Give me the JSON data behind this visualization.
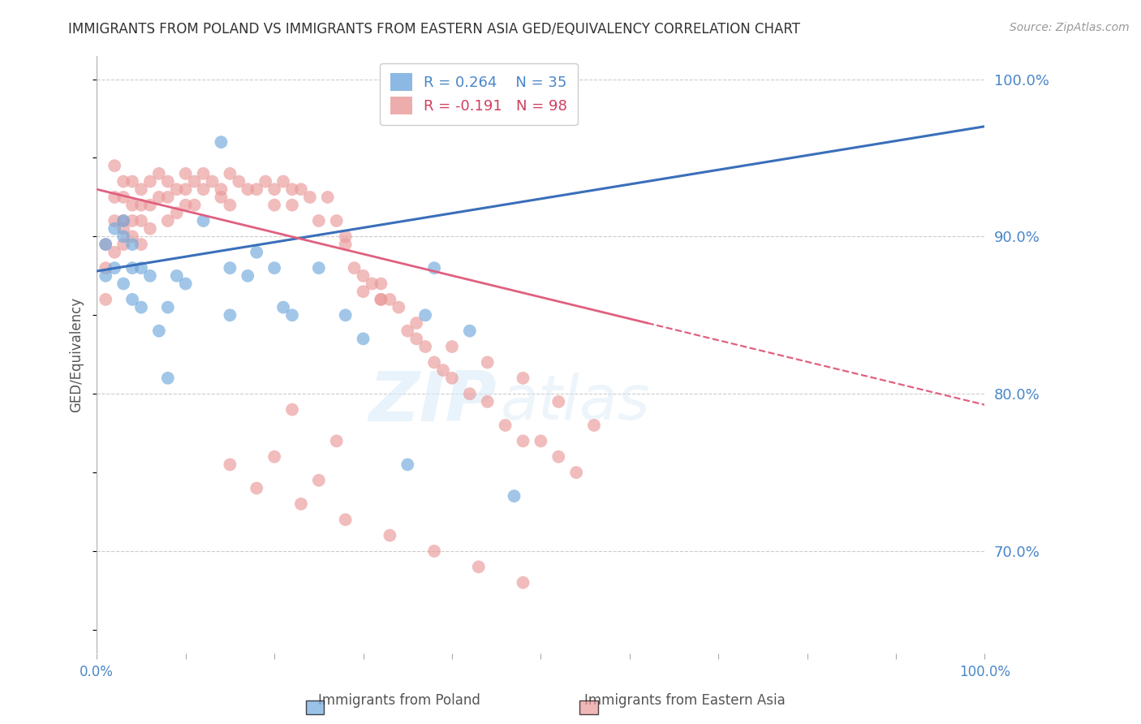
{
  "title": "IMMIGRANTS FROM POLAND VS IMMIGRANTS FROM EASTERN ASIA GED/EQUIVALENCY CORRELATION CHART",
  "source": "Source: ZipAtlas.com",
  "ylabel": "GED/Equivalency",
  "xlim": [
    0.0,
    1.0
  ],
  "ylim": [
    0.635,
    1.015
  ],
  "xticks": [
    0.0,
    0.1,
    0.2,
    0.3,
    0.4,
    0.5,
    0.6,
    0.7,
    0.8,
    0.9,
    1.0
  ],
  "xticklabels": [
    "0.0%",
    "",
    "",
    "",
    "",
    "",
    "",
    "",
    "",
    "",
    "100.0%"
  ],
  "ytick_positions": [
    0.7,
    0.8,
    0.9,
    1.0
  ],
  "ytick_labels": [
    "70.0%",
    "80.0%",
    "90.0%",
    "100.0%"
  ],
  "poland_color": "#6fa8dc",
  "eastern_asia_color": "#ea9999",
  "poland_line_color": "#3a6fba",
  "eastern_asia_line_color": "#e06080",
  "poland_R": 0.264,
  "poland_N": 35,
  "eastern_asia_R": -0.191,
  "eastern_asia_N": 98,
  "background_color": "#ffffff",
  "grid_color": "#cccccc",
  "axis_color": "#aaaaaa",
  "title_color": "#333333",
  "label_color": "#4a86c8",
  "watermark_color": "#d8eaf8",
  "poland_line_x0": 0.0,
  "poland_line_y0": 0.878,
  "poland_line_x1": 1.0,
  "poland_line_y1": 0.97,
  "eastern_line_x0": 0.0,
  "eastern_line_y0": 0.93,
  "eastern_line_solid_x1": 0.62,
  "eastern_line_solid_y1": 0.845,
  "eastern_line_dash_x1": 1.0,
  "eastern_line_dash_y1": 0.793,
  "poland_scatter_x": [
    0.01,
    0.01,
    0.02,
    0.02,
    0.03,
    0.03,
    0.03,
    0.04,
    0.04,
    0.04,
    0.05,
    0.05,
    0.06,
    0.07,
    0.08,
    0.08,
    0.09,
    0.1,
    0.12,
    0.14,
    0.15,
    0.15,
    0.17,
    0.18,
    0.2,
    0.21,
    0.22,
    0.25,
    0.28,
    0.3,
    0.35,
    0.37,
    0.38,
    0.42,
    0.47
  ],
  "poland_scatter_y": [
    0.895,
    0.875,
    0.905,
    0.88,
    0.91,
    0.9,
    0.87,
    0.895,
    0.88,
    0.86,
    0.88,
    0.855,
    0.875,
    0.84,
    0.855,
    0.81,
    0.875,
    0.87,
    0.91,
    0.96,
    0.88,
    0.85,
    0.875,
    0.89,
    0.88,
    0.855,
    0.85,
    0.88,
    0.85,
    0.835,
    0.755,
    0.85,
    0.88,
    0.84,
    0.735
  ],
  "eastern_asia_scatter_x": [
    0.01,
    0.01,
    0.01,
    0.02,
    0.02,
    0.02,
    0.02,
    0.03,
    0.03,
    0.03,
    0.03,
    0.03,
    0.04,
    0.04,
    0.04,
    0.04,
    0.05,
    0.05,
    0.05,
    0.05,
    0.06,
    0.06,
    0.06,
    0.07,
    0.07,
    0.08,
    0.08,
    0.08,
    0.09,
    0.09,
    0.1,
    0.1,
    0.1,
    0.11,
    0.11,
    0.12,
    0.12,
    0.13,
    0.14,
    0.14,
    0.15,
    0.15,
    0.16,
    0.17,
    0.18,
    0.19,
    0.2,
    0.2,
    0.21,
    0.22,
    0.22,
    0.23,
    0.24,
    0.25,
    0.26,
    0.27,
    0.28,
    0.28,
    0.29,
    0.3,
    0.31,
    0.32,
    0.32,
    0.33,
    0.34,
    0.35,
    0.36,
    0.37,
    0.38,
    0.39,
    0.4,
    0.42,
    0.44,
    0.46,
    0.48,
    0.5,
    0.52,
    0.54,
    0.3,
    0.32,
    0.36,
    0.4,
    0.44,
    0.48,
    0.52,
    0.56,
    0.2,
    0.25,
    0.22,
    0.27,
    0.15,
    0.18,
    0.23,
    0.28,
    0.33,
    0.38,
    0.43,
    0.48
  ],
  "eastern_asia_scatter_y": [
    0.895,
    0.88,
    0.86,
    0.945,
    0.925,
    0.91,
    0.89,
    0.935,
    0.925,
    0.91,
    0.905,
    0.895,
    0.935,
    0.92,
    0.91,
    0.9,
    0.93,
    0.92,
    0.91,
    0.895,
    0.935,
    0.92,
    0.905,
    0.94,
    0.925,
    0.935,
    0.925,
    0.91,
    0.93,
    0.915,
    0.94,
    0.93,
    0.92,
    0.935,
    0.92,
    0.94,
    0.93,
    0.935,
    0.93,
    0.925,
    0.94,
    0.92,
    0.935,
    0.93,
    0.93,
    0.935,
    0.93,
    0.92,
    0.935,
    0.93,
    0.92,
    0.93,
    0.925,
    0.91,
    0.925,
    0.91,
    0.9,
    0.895,
    0.88,
    0.875,
    0.87,
    0.87,
    0.86,
    0.86,
    0.855,
    0.84,
    0.835,
    0.83,
    0.82,
    0.815,
    0.81,
    0.8,
    0.795,
    0.78,
    0.77,
    0.77,
    0.76,
    0.75,
    0.865,
    0.86,
    0.845,
    0.83,
    0.82,
    0.81,
    0.795,
    0.78,
    0.76,
    0.745,
    0.79,
    0.77,
    0.755,
    0.74,
    0.73,
    0.72,
    0.71,
    0.7,
    0.69,
    0.68
  ]
}
